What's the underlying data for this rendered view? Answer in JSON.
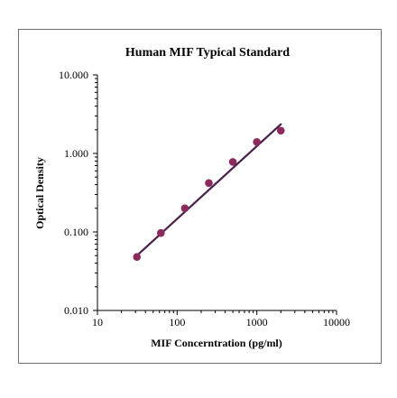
{
  "chart_data": {
    "type": "scatter",
    "title": "Human MIF Typical Standard",
    "xlabel": "MIF Concerntration (pg/ml)",
    "ylabel": "Optical Density",
    "x_scale": "log",
    "y_scale": "log",
    "xlim": [
      10,
      10000
    ],
    "ylim": [
      0.01,
      10
    ],
    "x_ticks": [
      10,
      100,
      1000,
      10000
    ],
    "x_tick_labels": [
      "10",
      "100",
      "1000",
      "10000"
    ],
    "y_ticks": [
      0.01,
      0.1,
      1,
      10
    ],
    "y_tick_labels": [
      "0.010",
      "0.100",
      "1.000",
      "10.000"
    ],
    "grid": false,
    "legend": false,
    "point_color": "#8b2a5b",
    "line_color": "#4a1f48",
    "series": [
      {
        "values": [
          {
            "x": 31.25,
            "y": 0.048
          },
          {
            "x": 62.5,
            "y": 0.097
          },
          {
            "x": 125,
            "y": 0.2
          },
          {
            "x": 250,
            "y": 0.42
          },
          {
            "x": 500,
            "y": 0.78
          },
          {
            "x": 1000,
            "y": 1.4
          },
          {
            "x": 2000,
            "y": 1.95
          }
        ]
      }
    ],
    "fit_line": {
      "x": [
        31.25,
        2000
      ],
      "y": [
        0.05,
        2.35
      ]
    }
  }
}
